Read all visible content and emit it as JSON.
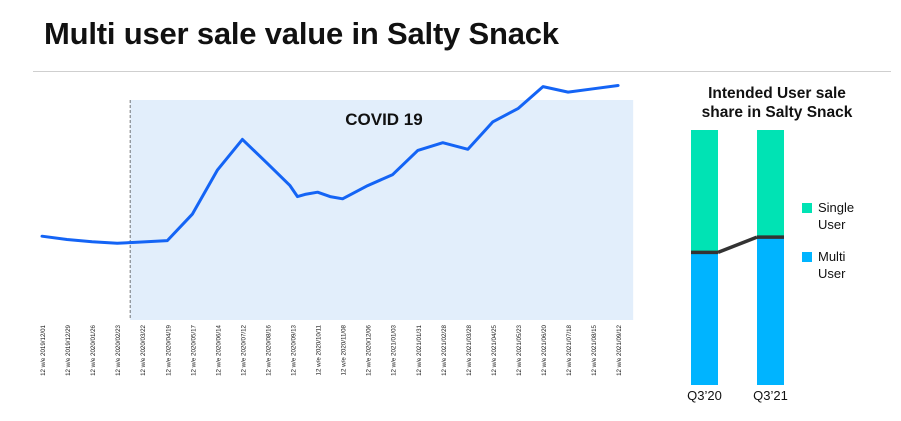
{
  "title": "Multi user sale value in Salty Snack",
  "colors": {
    "line": "#1464f5",
    "covid_band": "#e2eefb",
    "single_user": "#00e3b4",
    "multi_user": "#00b4ff",
    "connector": "#333333"
  },
  "chart_data": [
    {
      "type": "line",
      "title": "",
      "xlabel": "",
      "ylabel": "",
      "y_axis_visible": false,
      "grid": false,
      "annotations": [
        {
          "text": "COVID 19",
          "type": "shaded-region",
          "from": "12 w/e 2020/02/23",
          "to": "12 w/e 2021/09/12"
        }
      ],
      "categories": [
        "12 w/e 2019/12/01",
        "12 w/e 2019/12/29",
        "12 w/e 2020/01/26",
        "12 w/e 2020/02/23",
        "12 w/e 2020/03/22",
        "12 w/e 2020/04/19",
        "12 w/e 2020/05/17",
        "12 w/e 2020/06/14",
        "12 w/e 2020/07/12",
        "12 w/e 2020/08/16",
        "12 w/e 2020/09/13",
        "12 w/e 2020/10/11",
        "12 w/e 2020/11/08",
        "12 w/e 2020/12/06",
        "12 w/e 2021/01/03",
        "12 w/e 2021/01/31",
        "12 w/e 2021/02/28",
        "12 w/e 2021/03/28",
        "12 w/e 2021/04/25",
        "12 w/e 2021/05/23",
        "12 w/e 2021/06/20",
        "12 w/e 2021/07/18",
        "12 w/e 2021/08/15",
        "12 w/e 2021/09/12"
      ],
      "ylim": [
        0,
        100
      ],
      "series": [
        {
          "x": [
            0,
            1,
            2,
            3,
            3.7,
            5,
            6,
            7,
            8,
            9,
            9.9,
            10.2,
            10.5,
            11,
            11.5,
            12,
            13,
            14,
            15,
            16,
            17,
            18,
            19,
            20,
            21,
            22,
            23
          ],
          "values": [
            29,
            27.5,
            26.5,
            25.8,
            26.2,
            27,
            39,
            59,
            73,
            62,
            52,
            47,
            48,
            49,
            47,
            46,
            52,
            57,
            68,
            71.5,
            68.5,
            81,
            87,
            97,
            94.5,
            96,
            97.5
          ]
        }
      ]
    },
    {
      "type": "bar",
      "stacked": true,
      "normalized": true,
      "title": "Intended User sale share in Salty Snack",
      "categories": [
        "Q3’20",
        "Q3’21"
      ],
      "series": [
        {
          "name": "Multi User",
          "values": [
            52,
            58
          ]
        },
        {
          "name": "Single User",
          "values": [
            48,
            42
          ]
        }
      ],
      "legend_position": "right",
      "legend": [
        "Single User",
        "Multi User"
      ]
    }
  ]
}
